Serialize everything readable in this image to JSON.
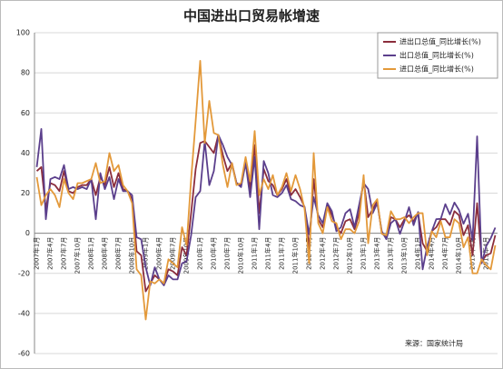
{
  "chart_data": {
    "type": "line",
    "title": "中国进出口贸易帐增速",
    "source": "来源：国家统计局",
    "categories": [
      "2007年1月",
      null,
      null,
      "2007年4月",
      null,
      null,
      "2007年7月",
      null,
      null,
      "2007年10月",
      null,
      null,
      "2008年1月",
      null,
      null,
      "2008年4月",
      null,
      null,
      "2008年7月",
      null,
      null,
      "2008年10月",
      null,
      null,
      "2009年1月",
      null,
      null,
      "2009年4月",
      null,
      null,
      "2009年7月",
      null,
      null,
      "2009年10月",
      null,
      null,
      "2010年1月",
      null,
      null,
      "2010年4月",
      null,
      null,
      "2010年7月",
      null,
      null,
      "2010年10月",
      null,
      null,
      "2011年1月",
      null,
      null,
      "2011年4月",
      null,
      null,
      "2011年7月",
      null,
      null,
      "2011年10月",
      null,
      null,
      "2012年1月",
      null,
      null,
      "2012年4月",
      null,
      null,
      "2012年7月",
      null,
      null,
      "2012年10月",
      null,
      null,
      "2013年1月",
      null,
      null,
      "2013年4月",
      null,
      null,
      "2013年7月",
      null,
      null,
      "2013年10月",
      null,
      null,
      "2014年1月",
      null,
      null,
      "2014年4月",
      null,
      null,
      "2014年7月",
      null,
      null,
      "2014年10月",
      null,
      null,
      "2015年1月",
      null,
      null,
      "2015年4月",
      null,
      null
    ],
    "series": [
      {
        "name": "进出口总值_同比增长(%)",
        "color": "#8b2d3c",
        "values": [
          31,
          33,
          12,
          25,
          24,
          21,
          31,
          21,
          20,
          23,
          24,
          24,
          27,
          19,
          28,
          24,
          33,
          23,
          30,
          22,
          21,
          17,
          -9,
          -11,
          -29,
          -25,
          -21,
          -23,
          -25,
          -18,
          -19,
          -21,
          -7,
          -11,
          10,
          32,
          45,
          46,
          43,
          40,
          49,
          39,
          31,
          35,
          25,
          24,
          36,
          22,
          44,
          10,
          32,
          26,
          24,
          19,
          22,
          27,
          19,
          22,
          18,
          13,
          -8,
          27,
          7,
          3,
          14,
          9,
          3,
          0,
          6,
          7,
          2,
          10,
          27,
          8,
          12,
          16,
          0,
          -2,
          8,
          7,
          3,
          7,
          9,
          6,
          10,
          -5,
          -9,
          1,
          3,
          7,
          7,
          4,
          11,
          9,
          -1,
          4,
          -11,
          15,
          -14,
          -11,
          -10,
          -1
        ]
      },
      {
        "name": "出口总值_同比增长(%)",
        "color": "#5b3f8c",
        "values": [
          33,
          52,
          7,
          27,
          28,
          27,
          34,
          22,
          23,
          22,
          23,
          22,
          27,
          7,
          30,
          22,
          28,
          17,
          27,
          21,
          21,
          19,
          -2,
          -3,
          -17,
          -26,
          -17,
          -23,
          -26,
          -21,
          -23,
          -23,
          -15,
          -14,
          -1,
          18,
          21,
          46,
          24,
          31,
          49,
          44,
          38,
          34,
          25,
          23,
          35,
          18,
          38,
          2,
          36,
          30,
          19,
          18,
          20,
          24,
          17,
          16,
          14,
          13,
          -0.5,
          18,
          9,
          5,
          15,
          11,
          1,
          3,
          10,
          12,
          3,
          14,
          25,
          22,
          10,
          15,
          1,
          -3,
          5,
          7,
          -0.3,
          6,
          13,
          4,
          10.6,
          -18,
          -6.6,
          0.9,
          7,
          7.2,
          14.5,
          9.4,
          15.3,
          11.6,
          4.7,
          9.7,
          -3.3,
          48.3,
          -15,
          -6.4,
          -2.5,
          2.8
        ]
      },
      {
        "name": "进口总值_同比增长(%)",
        "color": "#e3993a",
        "values": [
          28,
          14,
          19,
          22,
          19,
          13,
          27,
          20,
          17,
          25,
          25,
          26,
          27,
          35,
          25,
          26,
          40,
          31,
          34,
          24,
          21,
          15,
          -18,
          -21,
          -43,
          -24,
          -25,
          -23,
          -25,
          -13,
          -15,
          -17,
          3,
          -6,
          27,
          56,
          86,
          45,
          66,
          50,
          49,
          34,
          23,
          35,
          24,
          25,
          38,
          26,
          51,
          19,
          27,
          22,
          29,
          19,
          23,
          30,
          21,
          29,
          22,
          12,
          -15,
          40,
          5,
          0,
          13,
          6,
          5,
          -3,
          2,
          2,
          0,
          6,
          29,
          -5,
          14,
          17,
          -0.3,
          -1,
          11,
          7,
          7,
          8,
          5,
          8,
          10,
          10,
          -11,
          1,
          -2,
          6,
          -2,
          -2,
          7,
          5,
          -7,
          -2,
          -20,
          -20,
          -13,
          -16,
          -18,
          -6
        ]
      }
    ],
    "ylim": [
      -60,
      100
    ],
    "yticks": [
      -60,
      -40,
      -20,
      0,
      20,
      40,
      60,
      80,
      100
    ],
    "grid": true,
    "legend": "top-right"
  }
}
